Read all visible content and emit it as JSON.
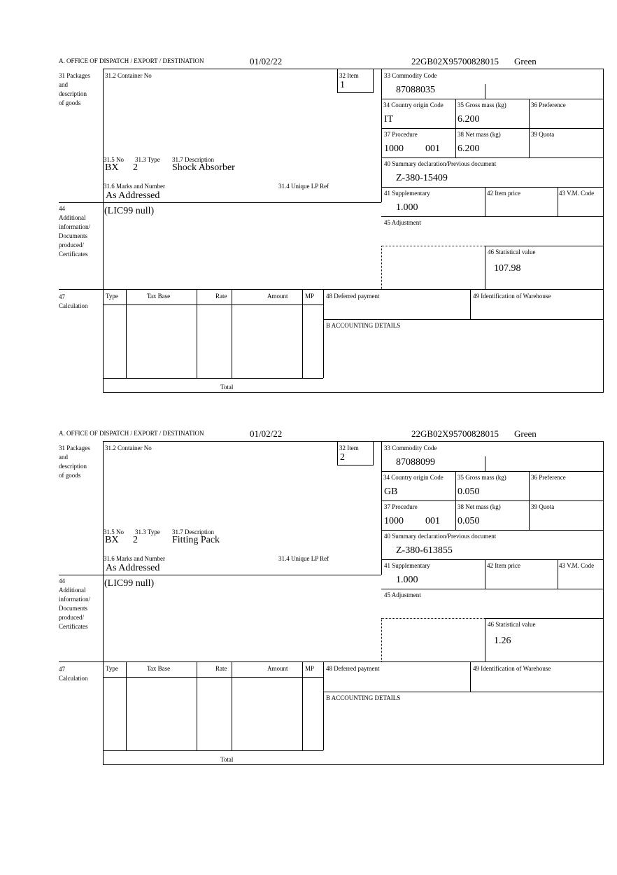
{
  "labels": {
    "office": "A.  OFFICE OF DISPATCH / EXPORT / DESTINATION",
    "box31": [
      "31 Packages",
      "and",
      "description",
      "of goods"
    ],
    "container": "31.2 Container No",
    "item": "32 Item",
    "no": "31.5 No",
    "type": "31.3 Type",
    "description": "31.7 Description",
    "marks": "31.6 Marks and Number",
    "unique_ref": "31.4 Unique LP Ref",
    "commodity": "33 Commodity Code",
    "country": "34 Country origin Code",
    "gross": "35 Gross mass (kg)",
    "preference": "36 Preference",
    "procedure": "37 Procedure",
    "net": "38 Net mass (kg)",
    "quota": "39 Quota",
    "summary": "40 Summary declaration/Previous document",
    "supplementary": "41 Supplementary",
    "item_price": "42 Item price",
    "vm_code": "43 V.M. Code",
    "adjustment": "45 Adjustment",
    "statistical": "46 Statistical value",
    "box44": [
      "44",
      "Additional",
      "information/",
      "Documents",
      "produced/",
      "Certificates"
    ],
    "box47": [
      "47",
      "Calculation"
    ],
    "calc_cols": [
      "Type",
      "Tax Base",
      "Rate",
      "Amount",
      "MP"
    ],
    "total": "Total",
    "deferred": "48 Deferred payment",
    "warehouse": "49 Identification of Warehouse",
    "accounting": "B ACCOUNTING DETAILS"
  },
  "items": [
    {
      "date": "01/02/22",
      "reference": "22GB02X95700828015",
      "route": "Green",
      "item_no": "1",
      "package_no": "BX",
      "package_type": "2",
      "description": "Shock Absorber",
      "marks": "As Addressed",
      "additional_info": "(LIC99 null)",
      "commodity_code": "87088035",
      "country_origin": "IT",
      "gross_mass": "6.200",
      "procedure": "1000",
      "procedure_extra": "001",
      "net_mass": "6.200",
      "previous_document": "Z-380-15409",
      "supplementary": "1.000",
      "statistical_value": "107.98"
    },
    {
      "date": "01/02/22",
      "reference": "22GB02X95700828015",
      "route": "Green",
      "item_no": "2",
      "package_no": "BX",
      "package_type": "2",
      "description": "Fitting Pack",
      "marks": "As Addressed",
      "additional_info": "(LIC99 null)",
      "commodity_code": "87088099",
      "country_origin": "GB",
      "gross_mass": "0.050",
      "procedure": "1000",
      "procedure_extra": "001",
      "net_mass": "0.050",
      "previous_document": "Z-380-613855",
      "supplementary": "1.000",
      "statistical_value": "1.26"
    }
  ]
}
